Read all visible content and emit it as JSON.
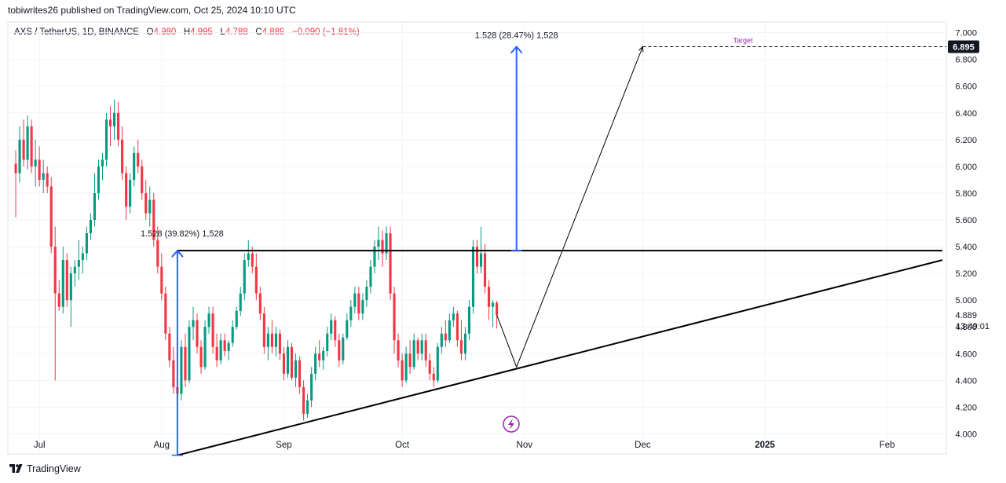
{
  "header": {
    "published": "tobiwrites26 published on TradingView.com, Oct 25, 2024 10:10 UTC"
  },
  "symbol": {
    "name": "AXS / TetherUS, 1D, BINANCE",
    "o_label": "O",
    "o": "4.980",
    "h_label": "H",
    "h": "4.995",
    "l_label": "L",
    "l": "4.788",
    "c_label": "C",
    "c": "4.889",
    "change": "−0.090 (−1.81%)"
  },
  "footer": {
    "brand": "TradingView"
  },
  "chart_data": {
    "type": "candlestick",
    "y_axis": {
      "ticks": [
        "4.000",
        "4.200",
        "4.400",
        "4.600",
        "4.800",
        "5.000",
        "5.200",
        "5.400",
        "5.600",
        "5.800",
        "6.000",
        "6.200",
        "6.400",
        "6.600",
        "6.800",
        "7.000"
      ],
      "ylim": [
        3.85,
        7.08
      ]
    },
    "x_axis": {
      "ticks": [
        "Jul",
        "Aug",
        "Sep",
        "Oct",
        "Nov",
        "Dec",
        "2025",
        "Feb"
      ],
      "tick_dates": [
        "2024-07-01",
        "2024-08-01",
        "2024-09-01",
        "2024-10-01",
        "2024-11-01",
        "2024-12-01",
        "2025-01-01",
        "2025-02-01"
      ]
    },
    "last_price": "4.889",
    "countdown": "13:49:01",
    "target_price": "6.895",
    "target_label": "Target",
    "measure_annotations": [
      {
        "text": "1.528 (39.82%) 1,528",
        "from_date": "2024-08-05",
        "from_price": 3.84,
        "to_price": 5.37
      },
      {
        "text": "1.528 (28.47%) 1,528",
        "from_date": "2024-10-30",
        "from_price": 5.37,
        "to_price": 6.895
      }
    ],
    "resistance_line": {
      "price": 5.37,
      "from": "2024-08-05",
      "to": "2025-02-15"
    },
    "support_line": {
      "from_date": "2024-08-05",
      "from_price": 3.84,
      "to_date": "2025-02-15",
      "to_price": 5.3
    },
    "projection_path": [
      {
        "date": "2024-10-25",
        "price": 4.889
      },
      {
        "date": "2024-10-30",
        "price": 4.5
      },
      {
        "date": "2024-12-01",
        "price": 6.895
      }
    ],
    "candles": [
      {
        "d": "2024-06-25",
        "o": 6.02,
        "h": 6.12,
        "l": 5.62,
        "c": 5.95
      },
      {
        "d": "2024-06-26",
        "o": 5.95,
        "h": 6.3,
        "l": 5.88,
        "c": 6.2
      },
      {
        "d": "2024-06-27",
        "o": 6.2,
        "h": 6.35,
        "l": 6.0,
        "c": 6.05
      },
      {
        "d": "2024-06-28",
        "o": 6.05,
        "h": 6.38,
        "l": 5.98,
        "c": 6.3
      },
      {
        "d": "2024-06-29",
        "o": 6.3,
        "h": 6.35,
        "l": 5.95,
        "c": 6.0
      },
      {
        "d": "2024-06-30",
        "o": 6.0,
        "h": 6.2,
        "l": 5.85,
        "c": 6.05
      },
      {
        "d": "2024-07-01",
        "o": 6.05,
        "h": 6.15,
        "l": 5.85,
        "c": 5.9
      },
      {
        "d": "2024-07-02",
        "o": 5.9,
        "h": 6.05,
        "l": 5.8,
        "c": 5.95
      },
      {
        "d": "2024-07-03",
        "o": 5.95,
        "h": 6.0,
        "l": 5.8,
        "c": 5.85
      },
      {
        "d": "2024-07-04",
        "o": 5.85,
        "h": 5.92,
        "l": 5.35,
        "c": 5.4
      },
      {
        "d": "2024-07-05",
        "o": 5.4,
        "h": 5.55,
        "l": 4.4,
        "c": 5.05
      },
      {
        "d": "2024-07-06",
        "o": 5.05,
        "h": 5.15,
        "l": 4.92,
        "c": 4.95
      },
      {
        "d": "2024-07-07",
        "o": 4.95,
        "h": 5.4,
        "l": 4.9,
        "c": 5.3
      },
      {
        "d": "2024-07-08",
        "o": 5.3,
        "h": 5.35,
        "l": 4.95,
        "c": 5.0
      },
      {
        "d": "2024-07-09",
        "o": 5.0,
        "h": 5.25,
        "l": 4.8,
        "c": 5.2
      },
      {
        "d": "2024-07-10",
        "o": 5.2,
        "h": 5.3,
        "l": 5.1,
        "c": 5.25
      },
      {
        "d": "2024-07-11",
        "o": 5.25,
        "h": 5.45,
        "l": 5.15,
        "c": 5.3
      },
      {
        "d": "2024-07-12",
        "o": 5.3,
        "h": 5.4,
        "l": 5.2,
        "c": 5.35
      },
      {
        "d": "2024-07-13",
        "o": 5.35,
        "h": 5.55,
        "l": 5.3,
        "c": 5.5
      },
      {
        "d": "2024-07-14",
        "o": 5.5,
        "h": 5.65,
        "l": 5.45,
        "c": 5.6
      },
      {
        "d": "2024-07-15",
        "o": 5.6,
        "h": 5.95,
        "l": 5.55,
        "c": 5.8
      },
      {
        "d": "2024-07-16",
        "o": 5.8,
        "h": 6.05,
        "l": 5.75,
        "c": 6.0
      },
      {
        "d": "2024-07-17",
        "o": 6.0,
        "h": 6.1,
        "l": 5.9,
        "c": 6.05
      },
      {
        "d": "2024-07-18",
        "o": 6.05,
        "h": 6.4,
        "l": 6.0,
        "c": 6.35
      },
      {
        "d": "2024-07-19",
        "o": 6.35,
        "h": 6.45,
        "l": 6.15,
        "c": 6.3
      },
      {
        "d": "2024-07-20",
        "o": 6.3,
        "h": 6.5,
        "l": 6.2,
        "c": 6.4
      },
      {
        "d": "2024-07-21",
        "o": 6.4,
        "h": 6.48,
        "l": 6.15,
        "c": 6.2
      },
      {
        "d": "2024-07-22",
        "o": 6.2,
        "h": 6.3,
        "l": 5.9,
        "c": 5.95
      },
      {
        "d": "2024-07-23",
        "o": 5.95,
        "h": 6.0,
        "l": 5.6,
        "c": 5.7
      },
      {
        "d": "2024-07-24",
        "o": 5.7,
        "h": 5.95,
        "l": 5.65,
        "c": 5.9
      },
      {
        "d": "2024-07-25",
        "o": 5.9,
        "h": 6.15,
        "l": 5.85,
        "c": 6.1
      },
      {
        "d": "2024-07-26",
        "o": 6.1,
        "h": 6.2,
        "l": 5.95,
        "c": 6.0
      },
      {
        "d": "2024-07-27",
        "o": 6.0,
        "h": 6.05,
        "l": 5.75,
        "c": 5.8
      },
      {
        "d": "2024-07-28",
        "o": 5.8,
        "h": 5.9,
        "l": 5.6,
        "c": 5.65
      },
      {
        "d": "2024-07-29",
        "o": 5.65,
        "h": 5.85,
        "l": 5.55,
        "c": 5.75
      },
      {
        "d": "2024-07-30",
        "o": 5.75,
        "h": 5.8,
        "l": 5.4,
        "c": 5.45
      },
      {
        "d": "2024-07-31",
        "o": 5.45,
        "h": 5.55,
        "l": 5.2,
        "c": 5.25
      },
      {
        "d": "2024-08-01",
        "o": 5.25,
        "h": 5.35,
        "l": 5.0,
        "c": 5.05
      },
      {
        "d": "2024-08-02",
        "o": 5.05,
        "h": 5.1,
        "l": 4.7,
        "c": 4.75
      },
      {
        "d": "2024-08-03",
        "o": 4.75,
        "h": 4.8,
        "l": 4.5,
        "c": 4.55
      },
      {
        "d": "2024-08-04",
        "o": 4.55,
        "h": 4.65,
        "l": 4.3,
        "c": 4.35
      },
      {
        "d": "2024-08-05",
        "o": 4.35,
        "h": 4.4,
        "l": 3.84,
        "c": 4.3
      },
      {
        "d": "2024-08-06",
        "o": 4.3,
        "h": 4.7,
        "l": 4.25,
        "c": 4.65
      },
      {
        "d": "2024-08-07",
        "o": 4.65,
        "h": 4.75,
        "l": 4.35,
        "c": 4.4
      },
      {
        "d": "2024-08-08",
        "o": 4.4,
        "h": 4.85,
        "l": 4.38,
        "c": 4.8
      },
      {
        "d": "2024-08-09",
        "o": 4.8,
        "h": 4.95,
        "l": 4.7,
        "c": 4.85
      },
      {
        "d": "2024-08-10",
        "o": 4.85,
        "h": 4.9,
        "l": 4.6,
        "c": 4.65
      },
      {
        "d": "2024-08-11",
        "o": 4.65,
        "h": 4.7,
        "l": 4.45,
        "c": 4.5
      },
      {
        "d": "2024-08-12",
        "o": 4.5,
        "h": 4.85,
        "l": 4.48,
        "c": 4.8
      },
      {
        "d": "2024-08-13",
        "o": 4.8,
        "h": 4.95,
        "l": 4.75,
        "c": 4.9
      },
      {
        "d": "2024-08-14",
        "o": 4.9,
        "h": 4.95,
        "l": 4.6,
        "c": 4.65
      },
      {
        "d": "2024-08-15",
        "o": 4.65,
        "h": 4.75,
        "l": 4.5,
        "c": 4.55
      },
      {
        "d": "2024-08-16",
        "o": 4.55,
        "h": 4.75,
        "l": 4.52,
        "c": 4.7
      },
      {
        "d": "2024-08-17",
        "o": 4.7,
        "h": 4.75,
        "l": 4.58,
        "c": 4.62
      },
      {
        "d": "2024-08-18",
        "o": 4.62,
        "h": 4.7,
        "l": 4.55,
        "c": 4.68
      },
      {
        "d": "2024-08-19",
        "o": 4.68,
        "h": 4.85,
        "l": 4.65,
        "c": 4.8
      },
      {
        "d": "2024-08-20",
        "o": 4.8,
        "h": 4.95,
        "l": 4.78,
        "c": 4.92
      },
      {
        "d": "2024-08-21",
        "o": 4.92,
        "h": 5.1,
        "l": 4.88,
        "c": 5.05
      },
      {
        "d": "2024-08-22",
        "o": 5.05,
        "h": 5.35,
        "l": 5.0,
        "c": 5.3
      },
      {
        "d": "2024-08-23",
        "o": 5.3,
        "h": 5.45,
        "l": 5.25,
        "c": 5.35
      },
      {
        "d": "2024-08-24",
        "o": 5.35,
        "h": 5.4,
        "l": 5.2,
        "c": 5.25
      },
      {
        "d": "2024-08-25",
        "o": 5.25,
        "h": 5.35,
        "l": 5.0,
        "c": 5.05
      },
      {
        "d": "2024-08-26",
        "o": 5.05,
        "h": 5.1,
        "l": 4.85,
        "c": 4.9
      },
      {
        "d": "2024-08-27",
        "o": 4.9,
        "h": 4.95,
        "l": 4.6,
        "c": 4.65
      },
      {
        "d": "2024-08-28",
        "o": 4.65,
        "h": 4.8,
        "l": 4.55,
        "c": 4.75
      },
      {
        "d": "2024-08-29",
        "o": 4.75,
        "h": 4.85,
        "l": 4.6,
        "c": 4.65
      },
      {
        "d": "2024-08-30",
        "o": 4.65,
        "h": 4.8,
        "l": 4.58,
        "c": 4.75
      },
      {
        "d": "2024-08-31",
        "o": 4.75,
        "h": 4.78,
        "l": 4.55,
        "c": 4.6
      },
      {
        "d": "2024-09-01",
        "o": 4.6,
        "h": 4.65,
        "l": 4.4,
        "c": 4.45
      },
      {
        "d": "2024-09-02",
        "o": 4.45,
        "h": 4.7,
        "l": 4.42,
        "c": 4.65
      },
      {
        "d": "2024-09-03",
        "o": 4.65,
        "h": 4.68,
        "l": 4.4,
        "c": 4.42
      },
      {
        "d": "2024-09-04",
        "o": 4.42,
        "h": 4.6,
        "l": 4.35,
        "c": 4.55
      },
      {
        "d": "2024-09-05",
        "o": 4.55,
        "h": 4.58,
        "l": 4.3,
        "c": 4.35
      },
      {
        "d": "2024-09-06",
        "o": 4.35,
        "h": 4.4,
        "l": 4.1,
        "c": 4.15
      },
      {
        "d": "2024-09-07",
        "o": 4.15,
        "h": 4.3,
        "l": 4.12,
        "c": 4.25
      },
      {
        "d": "2024-09-08",
        "o": 4.25,
        "h": 4.5,
        "l": 4.2,
        "c": 4.45
      },
      {
        "d": "2024-09-09",
        "o": 4.45,
        "h": 4.65,
        "l": 4.4,
        "c": 4.6
      },
      {
        "d": "2024-09-10",
        "o": 4.6,
        "h": 4.7,
        "l": 4.5,
        "c": 4.55
      },
      {
        "d": "2024-09-11",
        "o": 4.55,
        "h": 4.65,
        "l": 4.48,
        "c": 4.62
      },
      {
        "d": "2024-09-12",
        "o": 4.62,
        "h": 4.8,
        "l": 4.58,
        "c": 4.75
      },
      {
        "d": "2024-09-13",
        "o": 4.75,
        "h": 4.9,
        "l": 4.7,
        "c": 4.85
      },
      {
        "d": "2024-09-14",
        "o": 4.85,
        "h": 4.88,
        "l": 4.65,
        "c": 4.7
      },
      {
        "d": "2024-09-15",
        "o": 4.7,
        "h": 4.75,
        "l": 4.5,
        "c": 4.55
      },
      {
        "d": "2024-09-16",
        "o": 4.55,
        "h": 4.75,
        "l": 4.52,
        "c": 4.72
      },
      {
        "d": "2024-09-17",
        "o": 4.72,
        "h": 4.9,
        "l": 4.7,
        "c": 4.85
      },
      {
        "d": "2024-09-18",
        "o": 4.85,
        "h": 5.0,
        "l": 4.8,
        "c": 4.95
      },
      {
        "d": "2024-09-19",
        "o": 4.95,
        "h": 5.1,
        "l": 4.9,
        "c": 5.05
      },
      {
        "d": "2024-09-20",
        "o": 5.05,
        "h": 5.1,
        "l": 4.85,
        "c": 4.9
      },
      {
        "d": "2024-09-21",
        "o": 4.9,
        "h": 5.05,
        "l": 4.85,
        "c": 5.0
      },
      {
        "d": "2024-09-22",
        "o": 5.0,
        "h": 5.15,
        "l": 4.95,
        "c": 5.1
      },
      {
        "d": "2024-09-23",
        "o": 5.1,
        "h": 5.3,
        "l": 5.05,
        "c": 5.25
      },
      {
        "d": "2024-09-24",
        "o": 5.25,
        "h": 5.45,
        "l": 5.2,
        "c": 5.4
      },
      {
        "d": "2024-09-25",
        "o": 5.4,
        "h": 5.55,
        "l": 5.3,
        "c": 5.45
      },
      {
        "d": "2024-09-26",
        "o": 5.45,
        "h": 5.52,
        "l": 5.25,
        "c": 5.35
      },
      {
        "d": "2024-09-27",
        "o": 5.35,
        "h": 5.55,
        "l": 5.3,
        "c": 5.5
      },
      {
        "d": "2024-09-28",
        "o": 5.5,
        "h": 5.55,
        "l": 5.0,
        "c": 5.05
      },
      {
        "d": "2024-09-29",
        "o": 5.05,
        "h": 5.1,
        "l": 4.6,
        "c": 4.7
      },
      {
        "d": "2024-09-30",
        "o": 4.7,
        "h": 4.75,
        "l": 4.5,
        "c": 4.55
      },
      {
        "d": "2024-10-01",
        "o": 4.55,
        "h": 4.6,
        "l": 4.35,
        "c": 4.4
      },
      {
        "d": "2024-10-02",
        "o": 4.4,
        "h": 4.65,
        "l": 4.38,
        "c": 4.6
      },
      {
        "d": "2024-10-03",
        "o": 4.6,
        "h": 4.7,
        "l": 4.45,
        "c": 4.5
      },
      {
        "d": "2024-10-04",
        "o": 4.5,
        "h": 4.75,
        "l": 4.48,
        "c": 4.7
      },
      {
        "d": "2024-10-05",
        "o": 4.7,
        "h": 4.72,
        "l": 4.55,
        "c": 4.6
      },
      {
        "d": "2024-10-06",
        "o": 4.6,
        "h": 4.75,
        "l": 4.55,
        "c": 4.7
      },
      {
        "d": "2024-10-07",
        "o": 4.7,
        "h": 4.75,
        "l": 4.5,
        "c": 4.55
      },
      {
        "d": "2024-10-08",
        "o": 4.55,
        "h": 4.6,
        "l": 4.4,
        "c": 4.45
      },
      {
        "d": "2024-10-09",
        "o": 4.45,
        "h": 4.5,
        "l": 4.35,
        "c": 4.4
      },
      {
        "d": "2024-10-10",
        "o": 4.4,
        "h": 4.68,
        "l": 4.38,
        "c": 4.65
      },
      {
        "d": "2024-10-11",
        "o": 4.65,
        "h": 4.8,
        "l": 4.6,
        "c": 4.75
      },
      {
        "d": "2024-10-12",
        "o": 4.75,
        "h": 4.85,
        "l": 4.65,
        "c": 4.7
      },
      {
        "d": "2024-10-13",
        "o": 4.7,
        "h": 4.9,
        "l": 4.68,
        "c": 4.85
      },
      {
        "d": "2024-10-14",
        "o": 4.85,
        "h": 4.95,
        "l": 4.8,
        "c": 4.9
      },
      {
        "d": "2024-10-15",
        "o": 4.9,
        "h": 4.92,
        "l": 4.65,
        "c": 4.7
      },
      {
        "d": "2024-10-16",
        "o": 4.7,
        "h": 4.85,
        "l": 4.55,
        "c": 4.6
      },
      {
        "d": "2024-10-17",
        "o": 4.6,
        "h": 4.8,
        "l": 4.55,
        "c": 4.75
      },
      {
        "d": "2024-10-18",
        "o": 4.75,
        "h": 5.0,
        "l": 4.7,
        "c": 4.95
      },
      {
        "d": "2024-10-19",
        "o": 4.95,
        "h": 5.45,
        "l": 4.9,
        "c": 5.4
      },
      {
        "d": "2024-10-20",
        "o": 5.4,
        "h": 5.45,
        "l": 5.2,
        "c": 5.25
      },
      {
        "d": "2024-10-21",
        "o": 5.25,
        "h": 5.55,
        "l": 5.2,
        "c": 5.35
      },
      {
        "d": "2024-10-22",
        "o": 5.35,
        "h": 5.42,
        "l": 5.05,
        "c": 5.1
      },
      {
        "d": "2024-10-23",
        "o": 5.1,
        "h": 5.15,
        "l": 4.85,
        "c": 4.95
      },
      {
        "d": "2024-10-24",
        "o": 4.95,
        "h": 5.0,
        "l": 4.8,
        "c": 4.98
      },
      {
        "d": "2024-10-25",
        "o": 4.98,
        "h": 4.995,
        "l": 4.788,
        "c": 4.889
      }
    ]
  }
}
